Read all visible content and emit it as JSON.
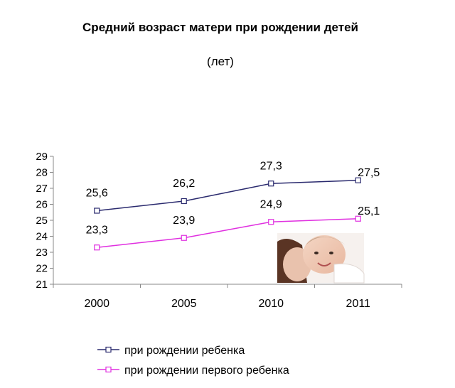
{
  "chart_data": {
    "type": "line",
    "title": "Средний возраст матери при рождении детей",
    "subtitle": "(лет)",
    "categories": [
      "2000",
      "2005",
      "2010",
      "2011"
    ],
    "series": [
      {
        "name": "при рождении ребенка",
        "values": [
          25.6,
          26.2,
          27.3,
          27.5
        ],
        "labels": [
          "25,6",
          "26,2",
          "27,3",
          "27,5"
        ],
        "color": "#2a2a6e"
      },
      {
        "name": "при рождении первого ребенка",
        "values": [
          23.3,
          23.9,
          24.9,
          25.1
        ],
        "labels": [
          "23,3",
          "23,9",
          "24,9",
          "25,1"
        ],
        "color": "#e030e0"
      }
    ],
    "yticks": [
      "21",
      "22",
      "23",
      "24",
      "25",
      "26",
      "27",
      "28",
      "29"
    ],
    "ylim": [
      21,
      29
    ],
    "grid": false,
    "legend_position": "bottom"
  }
}
